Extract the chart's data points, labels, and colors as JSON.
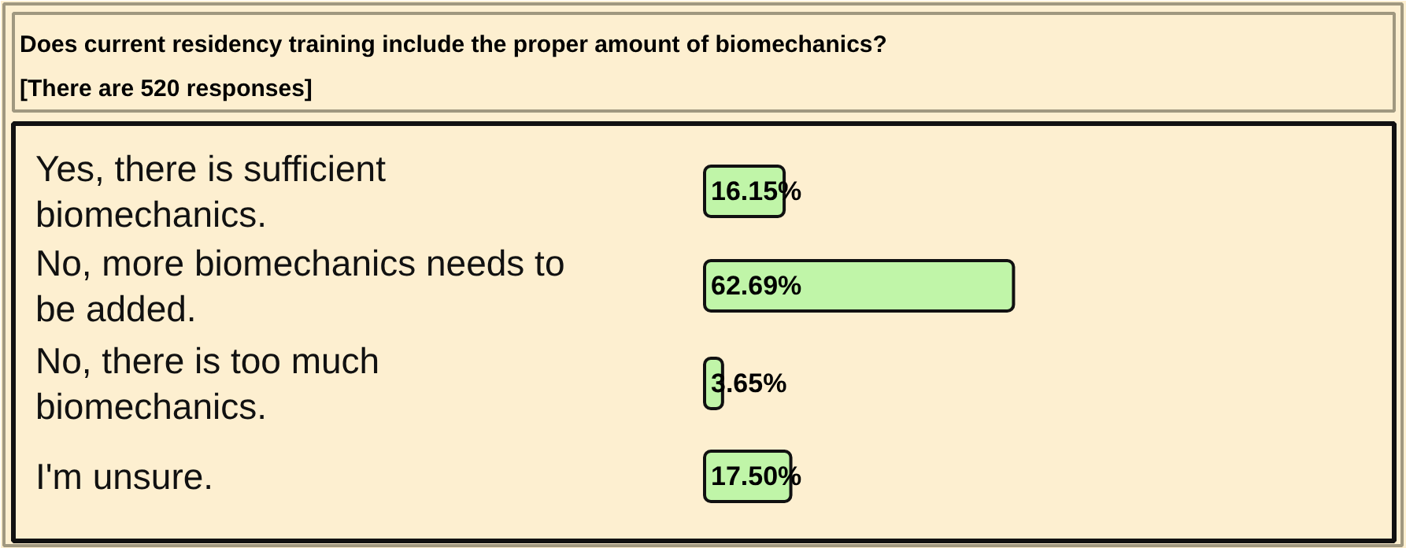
{
  "chart_data": {
    "type": "bar",
    "orientation": "horizontal",
    "title": "Does current residency training include the proper amount of biomechanics?",
    "subtitle": "[There are 520 responses]",
    "categories": [
      "Yes, there is sufficient biomechanics.",
      "No, more biomechanics needs to be added.",
      "No, there is too much biomechanics.",
      "I'm unsure."
    ],
    "values": [
      16.15,
      62.69,
      3.65,
      17.5
    ],
    "value_labels": [
      "16.15%",
      "62.69%",
      "3.65%",
      "17.50%"
    ],
    "color": "#c0f5a8",
    "grid": false
  }
}
